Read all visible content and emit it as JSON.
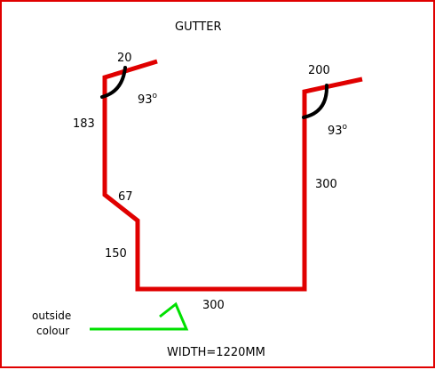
{
  "title": "GUTTER",
  "dimensions": {
    "left_lip": "20",
    "right_lip": "200",
    "left_upper": "183",
    "left_slope": "67",
    "left_lower": "150",
    "right_side": "300",
    "base": "300"
  },
  "angles": {
    "left": {
      "value": "93",
      "unit": "o"
    },
    "right": {
      "value": "93",
      "unit": "o"
    }
  },
  "annotation": {
    "line1": "outside",
    "line2": "colour"
  },
  "width_label": "WIDTH=1220MM",
  "colors": {
    "border": "#e00000",
    "profile": "#e00000",
    "angle_arc": "#000000",
    "arrow": "#00e000"
  }
}
